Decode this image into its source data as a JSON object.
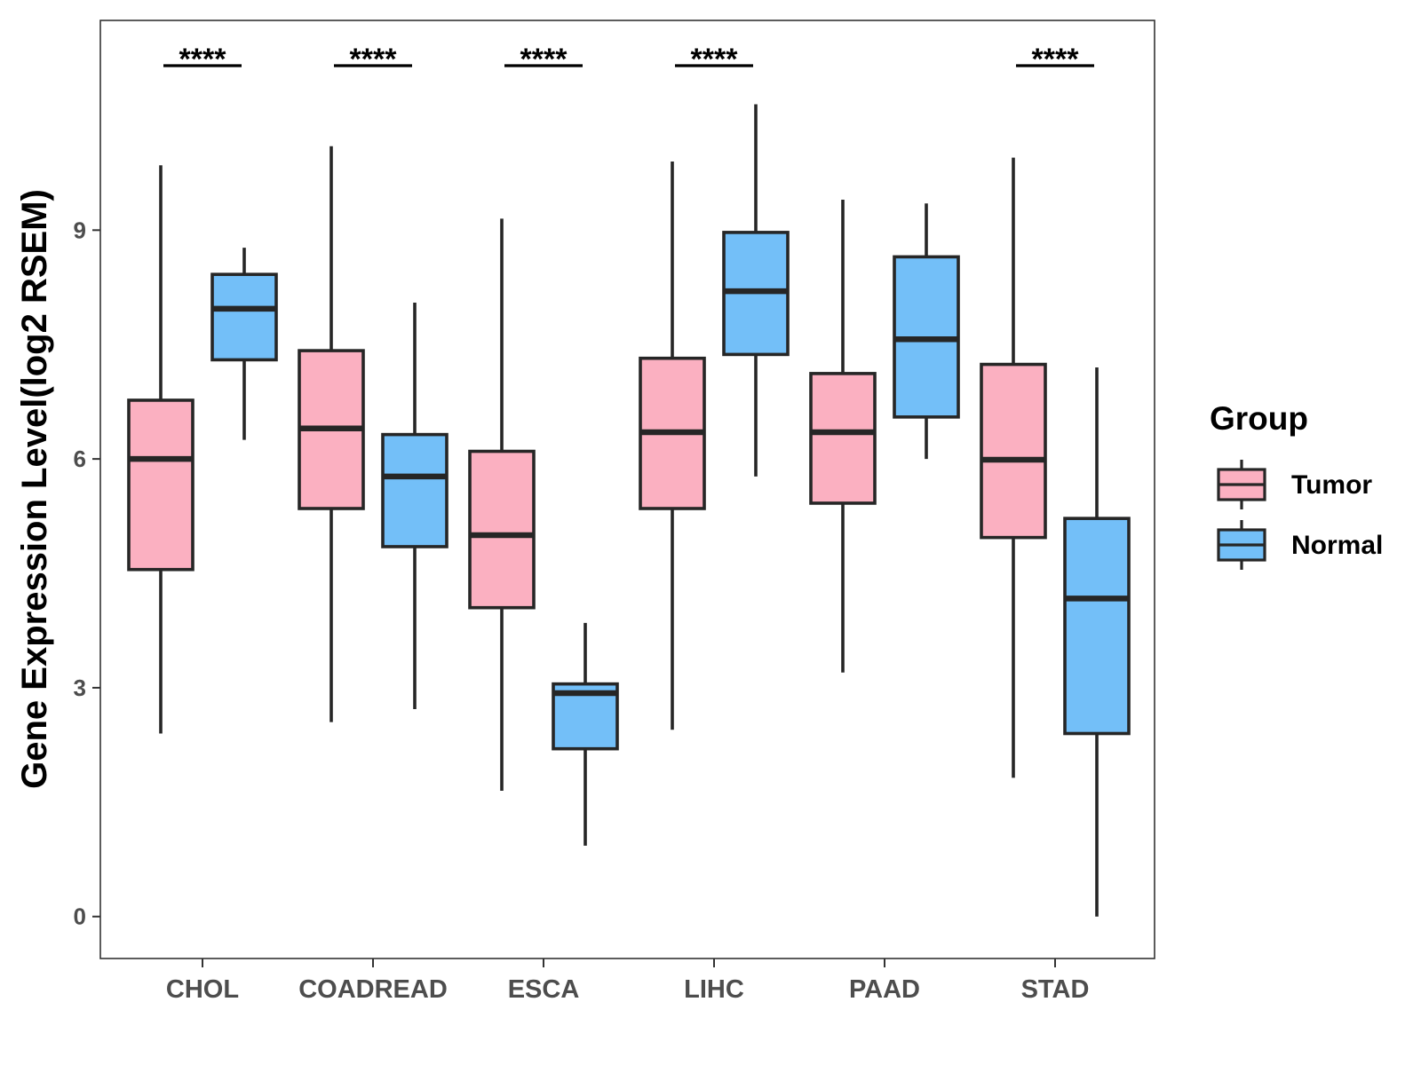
{
  "chart_data": {
    "type": "boxplot",
    "title": "",
    "xlabel": "",
    "ylabel": "Gene Expression Level(log2 RSEM)",
    "ylim": [
      -0.55,
      11.75
    ],
    "yticks": [
      0,
      3,
      6,
      9
    ],
    "grid": false,
    "categories": [
      "CHOL",
      "COADREAD",
      "ESCA",
      "LIHC",
      "PAAD",
      "STAD"
    ],
    "legend": {
      "title": "Group",
      "position": "right",
      "entries": [
        "Tumor",
        "Normal"
      ]
    },
    "colors": {
      "Tumor": "#FBB0C1",
      "Normal": "#73BFF8",
      "outline": "#262626"
    },
    "series": [
      {
        "name": "Tumor",
        "boxes": [
          {
            "whisker_low": 2.4,
            "q1": 4.55,
            "median": 6.0,
            "q3": 6.77,
            "whisker_high": 9.85
          },
          {
            "whisker_low": 2.55,
            "q1": 5.35,
            "median": 6.4,
            "q3": 7.42,
            "whisker_high": 10.1
          },
          {
            "whisker_low": 1.65,
            "q1": 4.05,
            "median": 5.0,
            "q3": 6.1,
            "whisker_high": 9.15
          },
          {
            "whisker_low": 2.45,
            "q1": 5.35,
            "median": 6.35,
            "q3": 7.32,
            "whisker_high": 9.9
          },
          {
            "whisker_low": 3.2,
            "q1": 5.42,
            "median": 6.35,
            "q3": 7.12,
            "whisker_high": 9.4
          },
          {
            "whisker_low": 1.82,
            "q1": 4.97,
            "median": 5.99,
            "q3": 7.24,
            "whisker_high": 9.95
          }
        ]
      },
      {
        "name": "Normal",
        "boxes": [
          {
            "whisker_low": 6.25,
            "q1": 7.3,
            "median": 7.97,
            "q3": 8.42,
            "whisker_high": 8.77
          },
          {
            "whisker_low": 2.72,
            "q1": 4.85,
            "median": 5.77,
            "q3": 6.32,
            "whisker_high": 8.05
          },
          {
            "whisker_low": 0.93,
            "q1": 2.2,
            "median": 2.93,
            "q3": 3.05,
            "whisker_high": 3.85
          },
          {
            "whisker_low": 5.77,
            "q1": 7.37,
            "median": 8.2,
            "q3": 8.97,
            "whisker_high": 10.65
          },
          {
            "whisker_low": 6.0,
            "q1": 6.55,
            "median": 7.57,
            "q3": 8.65,
            "whisker_high": 9.35
          },
          {
            "whisker_low": 0.0,
            "q1": 2.4,
            "median": 4.17,
            "q3": 5.22,
            "whisker_high": 7.2
          }
        ]
      }
    ],
    "annotations": [
      {
        "category": "CHOL",
        "label": "****"
      },
      {
        "category": "COADREAD",
        "label": "****"
      },
      {
        "category": "ESCA",
        "label": "****"
      },
      {
        "category": "LIHC",
        "label": "****"
      },
      {
        "category": "STAD",
        "label": "****"
      }
    ]
  }
}
